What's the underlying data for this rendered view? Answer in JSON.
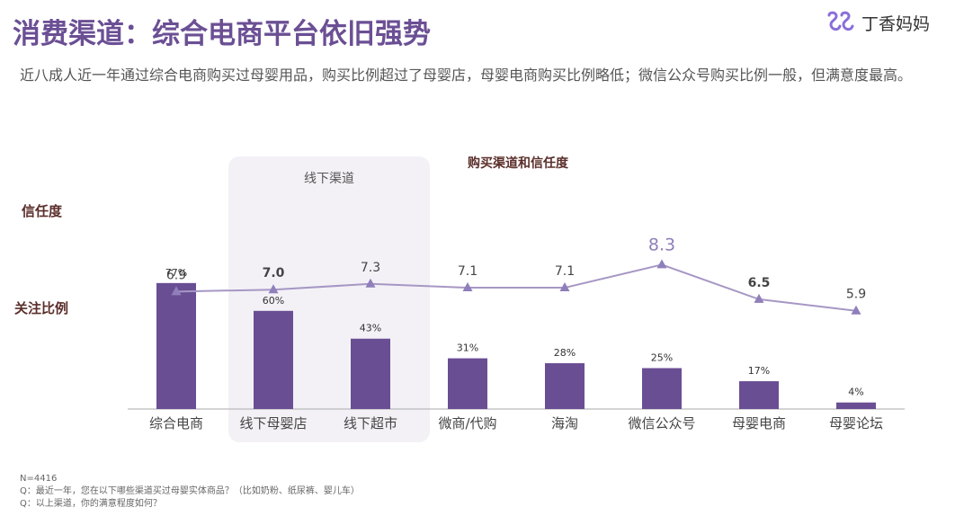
{
  "header": {
    "title": "消费渠道：综合电商平台依旧强势",
    "brand_name": "丁香妈妈",
    "brand_logo_icon": "dxy-mama-logo-icon"
  },
  "subtitle": "近八成人近一年通过综合电商购买过母婴用品，购买比例超过了母婴店，母婴电商购买比例略低；微信公众号购买比例一般，但满意度最高。",
  "chart_data": {
    "type": "bar",
    "title": "购买渠道和信任度",
    "highlight_group_label": "线下渠道",
    "highlight_group_categories": [
      "线下母婴店",
      "线下超市"
    ],
    "categories": [
      "综合电商",
      "线下母婴店",
      "线下超市",
      "微商/代购",
      "海淘",
      "微信公众号",
      "母婴电商",
      "母婴论坛"
    ],
    "series": [
      {
        "name": "关注比例",
        "type": "bar",
        "values": [
          77,
          60,
          43,
          31,
          28,
          25,
          17,
          4
        ],
        "labels": [
          "77%",
          "60%",
          "43%",
          "31%",
          "28%",
          "25%",
          "17%",
          "4%"
        ],
        "ylim": [
          0,
          100
        ]
      },
      {
        "name": "信任度",
        "type": "line",
        "values": [
          6.9,
          7.0,
          7.3,
          7.1,
          7.1,
          8.3,
          6.5,
          5.9
        ],
        "labels": [
          "6.9",
          "7.0",
          "7.3",
          "7.1",
          "7.1",
          "8.3",
          "6.5",
          "5.9"
        ],
        "ylim": [
          5,
          10
        ]
      }
    ],
    "colors": {
      "bar": "#6a4e94",
      "line": "#a697c4",
      "marker": "#8f7fba",
      "highlight_box": "#f3f1f6",
      "axis": "#aaaaaa",
      "row_label": "#5a2e2a"
    }
  },
  "footer": {
    "n": "N=4416",
    "q1": "Q：最近一年，您在以下哪些渠道买过母婴实体商品？（比如奶粉、纸尿裤、婴儿车）",
    "q2": "Q：以上渠道，你的满意程度如何？"
  }
}
